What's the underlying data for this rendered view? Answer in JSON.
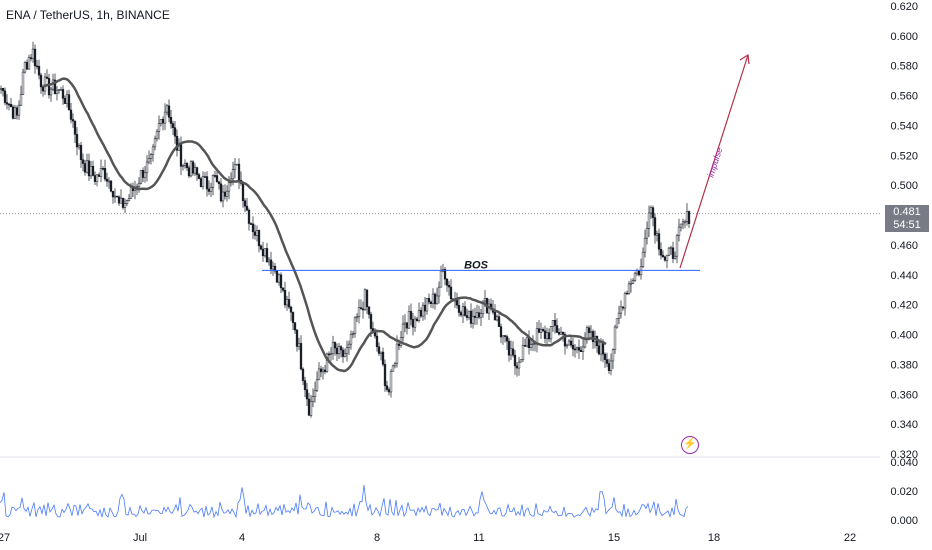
{
  "header": {
    "symbol": "ENA / TetherUS, 1h, BINANCE"
  },
  "price_badge": {
    "price": "0.481",
    "countdown": "54:51"
  },
  "annotations": {
    "bos": "BOS",
    "impulse": "impulse"
  },
  "colors": {
    "candle": "#131722",
    "ma": "#555555",
    "bos_line": "#2962ff",
    "impulse_arrow": "#b2304a",
    "indicator": "#2962ff",
    "bolt": "#9c27b0"
  },
  "chart_data": [
    {
      "type": "candlestick",
      "title": "ENA / TetherUS, 1h, BINANCE",
      "y_ticks": [
        "0.620",
        "0.600",
        "0.580",
        "0.560",
        "0.540",
        "0.520",
        "0.500",
        "0.480",
        "0.460",
        "0.440",
        "0.420",
        "0.400",
        "0.380",
        "0.360",
        "0.340",
        "0.320"
      ],
      "ylim": [
        0.32,
        0.62
      ],
      "x_ticks": [
        "27",
        "Jul",
        "4",
        "8",
        "11",
        "15",
        "18",
        "22"
      ],
      "last_price": 0.481,
      "bos_level": 0.443,
      "series": [
        {
          "name": "",
          "values": [
            0.565,
            0.555,
            0.545,
            0.58,
            0.59,
            0.57,
            0.565,
            0.565,
            0.56,
            0.545,
            0.52,
            0.51,
            0.505,
            0.51,
            0.5,
            0.485,
            0.49,
            0.5,
            0.51,
            0.515,
            0.54,
            0.555,
            0.53,
            0.515,
            0.51,
            0.505,
            0.5,
            0.505,
            0.49,
            0.51,
            0.51,
            0.485,
            0.47,
            0.46,
            0.45,
            0.44,
            0.42,
            0.41,
            0.38,
            0.35,
            0.37,
            0.38,
            0.39,
            0.385,
            0.39,
            0.41,
            0.425,
            0.4,
            0.385,
            0.36,
            0.39,
            0.41,
            0.41,
            0.415,
            0.42,
            0.425,
            0.445,
            0.425,
            0.42,
            0.41,
            0.415,
            0.42,
            0.42,
            0.405,
            0.39,
            0.38,
            0.39,
            0.395,
            0.4,
            0.4,
            0.405,
            0.4,
            0.39,
            0.39,
            0.4,
            0.395,
            0.39,
            0.38,
            0.41,
            0.43,
            0.44,
            0.445,
            0.49,
            0.465,
            0.45,
            0.455,
            0.47,
            0.48
          ]
        }
      ]
    },
    {
      "type": "line",
      "y_ticks": [
        "0.040",
        "0.020",
        "0.000"
      ],
      "ylim": [
        0,
        0.04
      ]
    }
  ]
}
